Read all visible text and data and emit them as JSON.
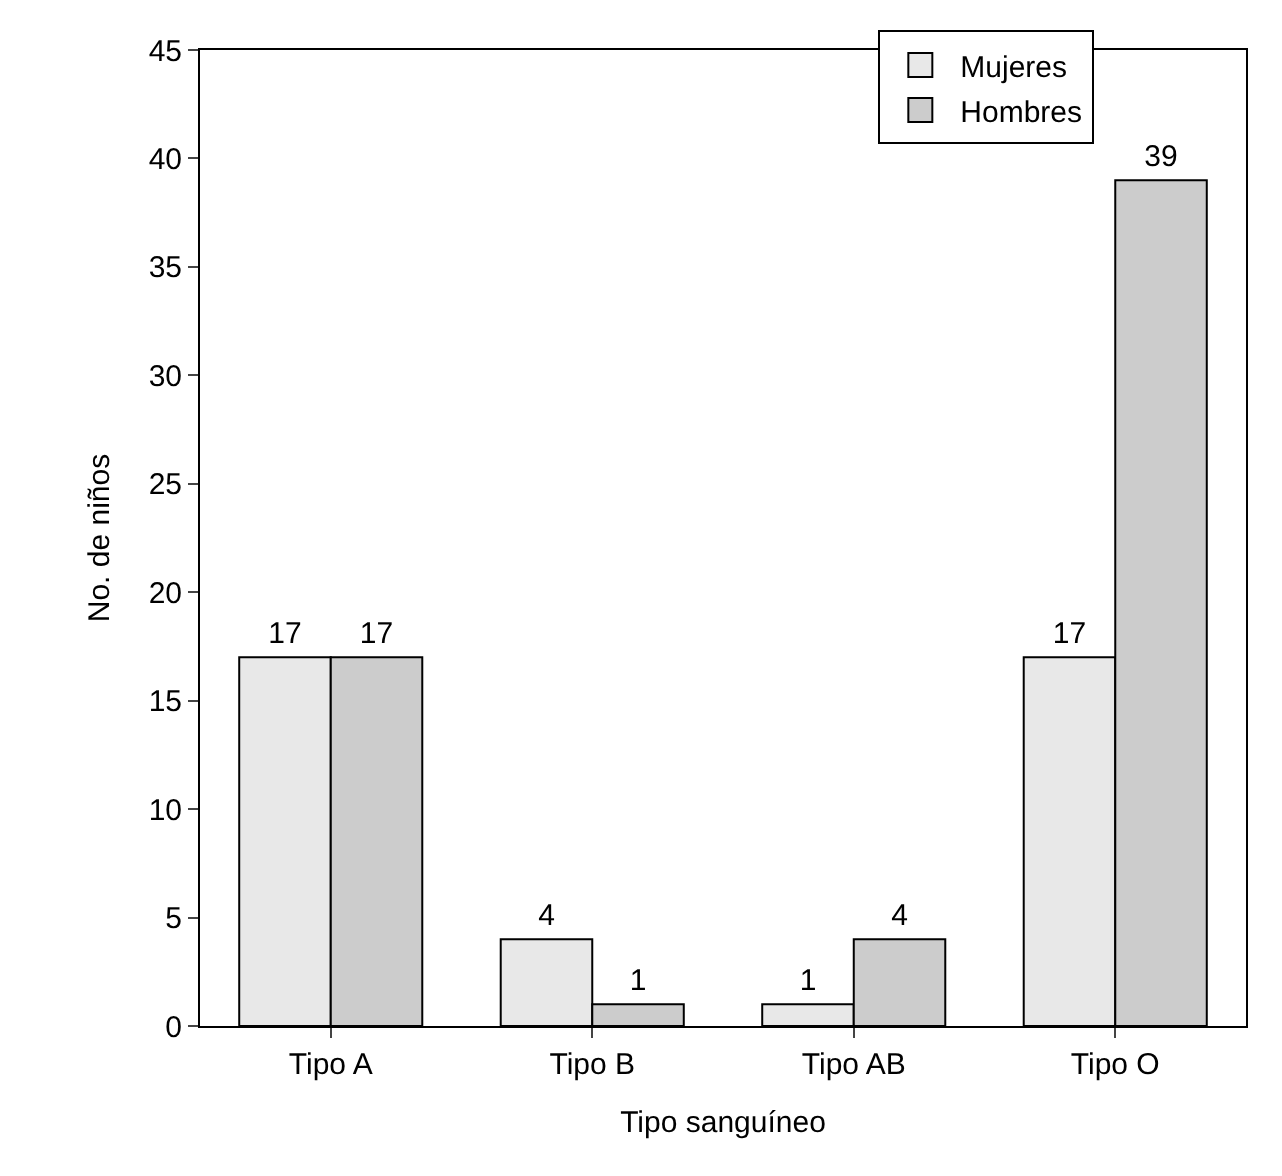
{
  "chart_data": {
    "type": "bar",
    "xlabel": "Tipo sanguíneo",
    "ylabel": "No. de niños",
    "categories": [
      "Tipo A",
      "Tipo B",
      "Tipo AB",
      "Tipo O"
    ],
    "series": [
      {
        "name": "Mujeres",
        "color": "#e8e8e8",
        "values": [
          17,
          4,
          1,
          17
        ]
      },
      {
        "name": "Hombres",
        "color": "#cccccc",
        "values": [
          17,
          1,
          4,
          39
        ]
      }
    ],
    "ylim": [
      0,
      45
    ],
    "yticks": [
      0,
      5,
      10,
      15,
      20,
      25,
      30,
      35,
      40,
      45
    ],
    "legend": "top right",
    "data_labels": true
  }
}
